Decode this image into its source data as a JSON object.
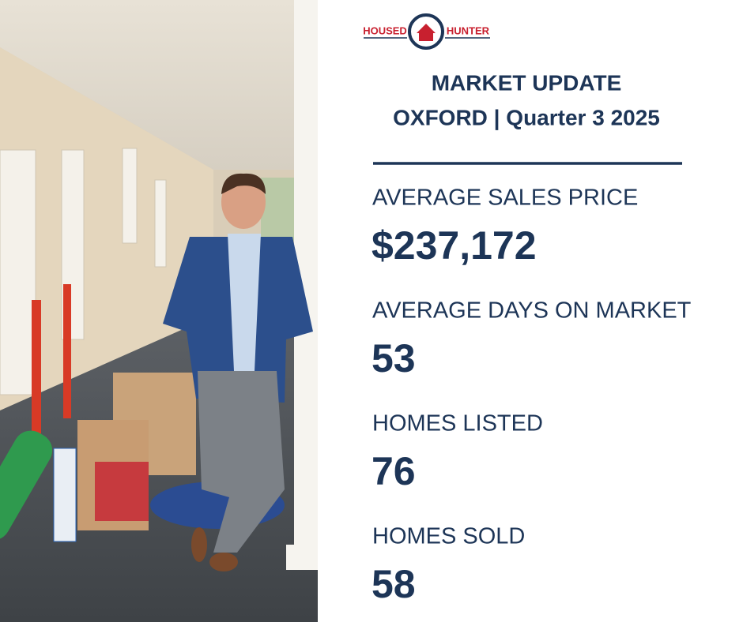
{
  "logo": {
    "left": "HOUSED",
    "right": "HUNTER"
  },
  "header": {
    "title": "MARKET UPDATE",
    "subtitle": "OXFORD | Quarter 3 2025"
  },
  "stats": [
    {
      "label": "AVERAGE SALES PRICE",
      "value": "$237,172"
    },
    {
      "label": "AVERAGE DAYS ON MARKET",
      "value": "53"
    },
    {
      "label": "HOMES LISTED",
      "value": "76"
    },
    {
      "label": "HOMES SOLD",
      "value": "58"
    }
  ]
}
